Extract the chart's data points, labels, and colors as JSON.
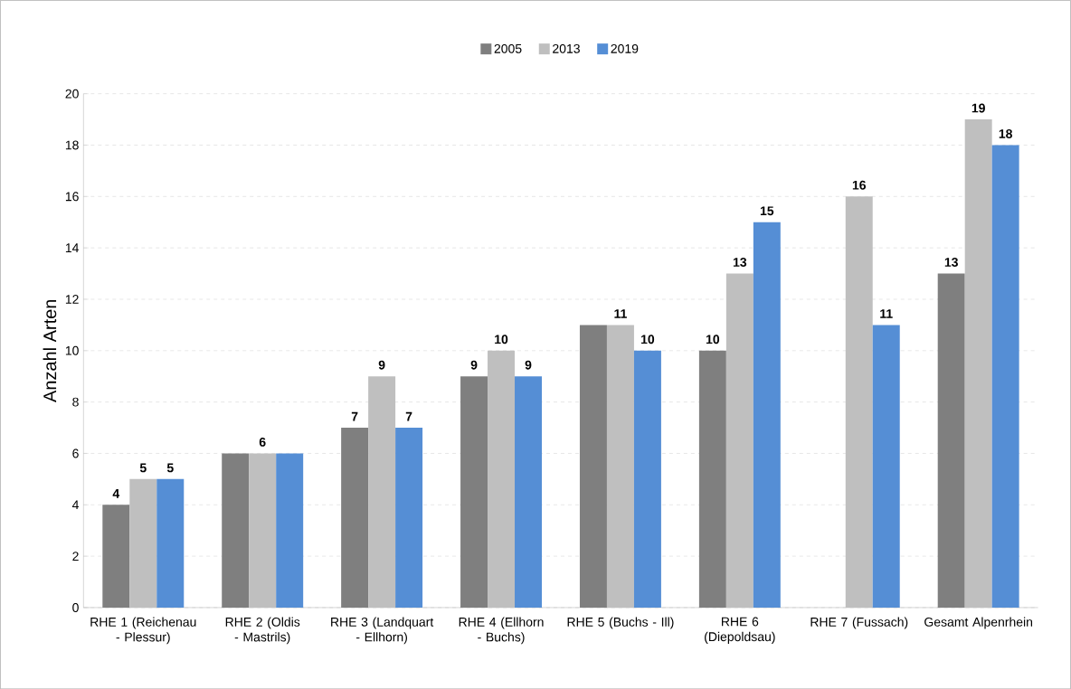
{
  "chart_data": {
    "type": "bar",
    "ylabel": "Anzahl Arten",
    "categories": [
      "RHE 1 (Reichenau - Plessur)",
      "RHE 2 (Oldis - Mastrils)",
      "RHE 3 (Landquart - Ellhorn)",
      "RHE 4 (Ellhorn - Buchs)",
      "RHE 5 (Buchs - Ill)",
      "RHE 6 (Diepoldsau)",
      "RHE 7 (Fussach)",
      "Gesamt Alpenrhein"
    ],
    "series": [
      {
        "name": "2005",
        "color": "#7f7f7f",
        "values": [
          4,
          6,
          7,
          9,
          11,
          10,
          null,
          13
        ],
        "value_labels": [
          "4",
          null,
          "7",
          "9",
          null,
          "10",
          null,
          "13"
        ]
      },
      {
        "name": "2013",
        "color": "#bfbfbf",
        "values": [
          5,
          6,
          9,
          10,
          11,
          13,
          16,
          19
        ],
        "value_labels": [
          "5",
          "6",
          "9",
          "10",
          "11",
          "13",
          "16",
          "19"
        ]
      },
      {
        "name": "2019",
        "color": "#558ed5",
        "values": [
          5,
          6,
          7,
          9,
          10,
          15,
          11,
          18
        ],
        "value_labels": [
          "5",
          null,
          "7",
          "9",
          "10",
          "15",
          "11",
          "18"
        ]
      }
    ],
    "ylim": [
      0,
      20
    ],
    "yticks": [
      0,
      2,
      4,
      6,
      8,
      10,
      12,
      14,
      16,
      18,
      20
    ],
    "grid": "y",
    "legend": "top"
  }
}
